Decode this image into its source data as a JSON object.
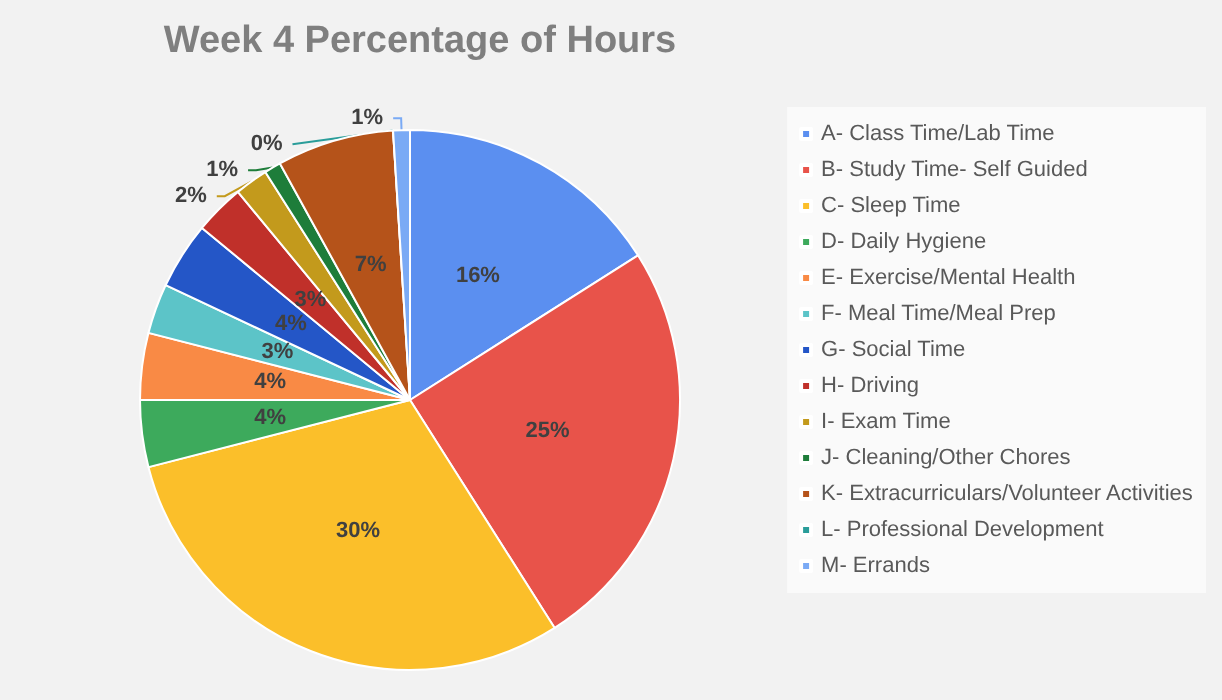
{
  "chart_data": {
    "type": "pie",
    "title": "Week 4 Percentage of Hours",
    "categories": [
      "A- Class Time/Lab Time",
      "B- Study Time- Self Guided",
      "C- Sleep Time",
      "D- Daily Hygiene",
      "E- Exercise/Mental Health",
      "F- Meal Time/Meal Prep",
      "G- Social Time",
      "H- Driving",
      "I- Exam Time",
      "J- Cleaning/Other Chores",
      "K- Extracurriculars/Volunteer Activities",
      "L- Professional Development",
      "M- Errands"
    ],
    "values": [
      16,
      25,
      30,
      4,
      4,
      3,
      4,
      3,
      2,
      1,
      7,
      0,
      1
    ],
    "value_labels": [
      "16%",
      "25%",
      "30%",
      "4%",
      "4%",
      "3%",
      "4%",
      "3%",
      "2%",
      "1%",
      "7%",
      "0%",
      "1%"
    ],
    "colors": [
      "#5b8ff0",
      "#e8534a",
      "#fbbf2a",
      "#3daa5c",
      "#f98a45",
      "#5cc4c8",
      "#2456c7",
      "#c0302a",
      "#c39a1c",
      "#1e7d3a",
      "#b5531a",
      "#2a9d9a",
      "#7aaaf5"
    ],
    "legend": "right"
  }
}
